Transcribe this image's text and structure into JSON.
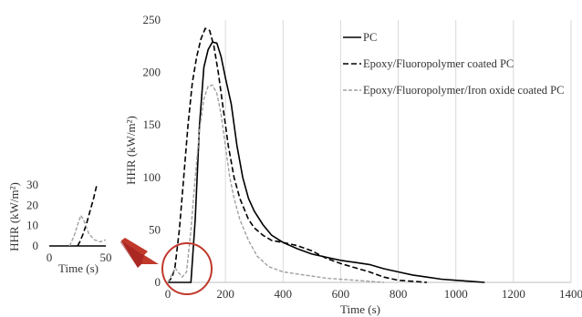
{
  "chart_data": [
    {
      "type": "line",
      "xlabel": "Time (s)",
      "ylabel": "HHR (kW/m²)",
      "xlim": [
        0,
        1400
      ],
      "ylim": [
        0,
        250
      ],
      "x_ticks": [
        "0",
        "200",
        "400",
        "600",
        "800",
        "1000",
        "1200",
        "1400"
      ],
      "y_ticks": [
        "0",
        "50",
        "100",
        "150",
        "200",
        "250"
      ],
      "grid": "vertical",
      "legend_position": "top-right",
      "series": [
        {
          "name": "PC",
          "color": "#000000",
          "dash": "solid",
          "points": [
            [
              0,
              0
            ],
            [
              70,
              0
            ],
            [
              80,
              0
            ],
            [
              95,
              60
            ],
            [
              110,
              150
            ],
            [
              125,
              205
            ],
            [
              140,
              222
            ],
            [
              155,
              229
            ],
            [
              170,
              228
            ],
            [
              185,
              215
            ],
            [
              200,
              195
            ],
            [
              220,
              170
            ],
            [
              240,
              130
            ],
            [
              260,
              100
            ],
            [
              280,
              80
            ],
            [
              300,
              68
            ],
            [
              330,
              55
            ],
            [
              360,
              45
            ],
            [
              400,
              38
            ],
            [
              450,
              32
            ],
            [
              500,
              27
            ],
            [
              550,
              24
            ],
            [
              600,
              21
            ],
            [
              650,
              19
            ],
            [
              700,
              17
            ],
            [
              750,
              13
            ],
            [
              800,
              10
            ],
            [
              850,
              7
            ],
            [
              900,
              5
            ],
            [
              950,
              3
            ],
            [
              1000,
              2
            ],
            [
              1050,
              1
            ],
            [
              1100,
              0
            ]
          ]
        },
        {
          "name": "Epoxy/Fluoropolymer coated PC",
          "color": "#000000",
          "dash": "dashed",
          "points": [
            [
              0,
              0
            ],
            [
              15,
              5
            ],
            [
              25,
              15
            ],
            [
              40,
              50
            ],
            [
              55,
              100
            ],
            [
              70,
              150
            ],
            [
              85,
              190
            ],
            [
              100,
              215
            ],
            [
              115,
              232
            ],
            [
              130,
              242
            ],
            [
              145,
              240
            ],
            [
              160,
              225
            ],
            [
              175,
              200
            ],
            [
              190,
              170
            ],
            [
              210,
              130
            ],
            [
              230,
              100
            ],
            [
              250,
              80
            ],
            [
              280,
              60
            ],
            [
              300,
              52
            ],
            [
              330,
              45
            ],
            [
              360,
              40
            ],
            [
              400,
              38
            ],
            [
              450,
              35
            ],
            [
              500,
              30
            ],
            [
              550,
              23
            ],
            [
              600,
              18
            ],
            [
              650,
              14
            ],
            [
              700,
              10
            ],
            [
              750,
              5
            ],
            [
              800,
              2
            ],
            [
              850,
              1
            ],
            [
              900,
              0
            ]
          ]
        },
        {
          "name": "Epoxy/Fluoropolymer/Iron oxide coated PC",
          "color": "#a0a0a0",
          "dash": "dashed",
          "points": [
            [
              0,
              0
            ],
            [
              15,
              8
            ],
            [
              25,
              14
            ],
            [
              35,
              10
            ],
            [
              50,
              5
            ],
            [
              65,
              10
            ],
            [
              80,
              50
            ],
            [
              95,
              100
            ],
            [
              110,
              145
            ],
            [
              125,
              175
            ],
            [
              140,
              187
            ],
            [
              155,
              188
            ],
            [
              170,
              180
            ],
            [
              185,
              160
            ],
            [
              200,
              130
            ],
            [
              215,
              100
            ],
            [
              230,
              80
            ],
            [
              250,
              60
            ],
            [
              280,
              40
            ],
            [
              310,
              25
            ],
            [
              350,
              15
            ],
            [
              400,
              10
            ],
            [
              450,
              8
            ],
            [
              500,
              6
            ],
            [
              550,
              4
            ],
            [
              600,
              3
            ],
            [
              650,
              2
            ],
            [
              700,
              1
            ],
            [
              750,
              0
            ]
          ]
        }
      ]
    },
    {
      "type": "line",
      "xlabel": "Time (s)",
      "ylabel": "HHR (kW/m²)",
      "xlim": [
        0,
        50
      ],
      "ylim": [
        0,
        30
      ],
      "x_ticks": [
        "0",
        "50"
      ],
      "y_ticks": [
        "0",
        "10",
        "20",
        "30"
      ],
      "series": [
        {
          "color": "#000000",
          "dash": "solid",
          "points": [
            [
              0,
              0
            ],
            [
              28,
              0
            ],
            [
              50,
              0
            ]
          ]
        },
        {
          "color": "#000000",
          "dash": "dashed",
          "points": [
            [
              25,
              0
            ],
            [
              27,
              2
            ],
            [
              30,
              6
            ],
            [
              33,
              11
            ],
            [
              36,
              17
            ],
            [
              39,
              23
            ],
            [
              42,
              30
            ]
          ]
        },
        {
          "color": "#a0a0a0",
          "dash": "dashed",
          "points": [
            [
              18,
              0
            ],
            [
              22,
              5
            ],
            [
              26,
              12
            ],
            [
              28,
              15
            ],
            [
              31,
              12
            ],
            [
              35,
              6
            ],
            [
              40,
              3
            ],
            [
              45,
              2
            ],
            [
              50,
              3
            ]
          ]
        }
      ]
    }
  ]
}
